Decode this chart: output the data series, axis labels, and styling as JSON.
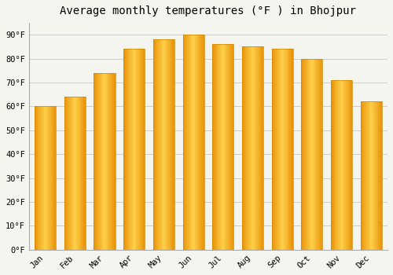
{
  "title": "Average monthly temperatures (°F ) in Bhojpur",
  "months": [
    "Jan",
    "Feb",
    "Mar",
    "Apr",
    "May",
    "Jun",
    "Jul",
    "Aug",
    "Sep",
    "Oct",
    "Nov",
    "Dec"
  ],
  "values": [
    60,
    64,
    74,
    84,
    88,
    90,
    86,
    85,
    84,
    80,
    71,
    62
  ],
  "bar_color_edge": "#E8940A",
  "bar_color_center": "#FFD04A",
  "ylim": [
    0,
    95
  ],
  "yticks": [
    0,
    10,
    20,
    30,
    40,
    50,
    60,
    70,
    80,
    90
  ],
  "ytick_labels": [
    "0°F",
    "10°F",
    "20°F",
    "30°F",
    "40°F",
    "50°F",
    "60°F",
    "70°F",
    "80°F",
    "90°F"
  ],
  "title_fontsize": 10,
  "tick_fontsize": 7.5,
  "background_color": "#f5f5f0",
  "plot_bg_color": "#f5f5f0",
  "grid_color": "#cccccc",
  "spine_color": "#aaaaaa",
  "bar_edge_color": "#cc8800",
  "bar_edge_width": 0.5
}
